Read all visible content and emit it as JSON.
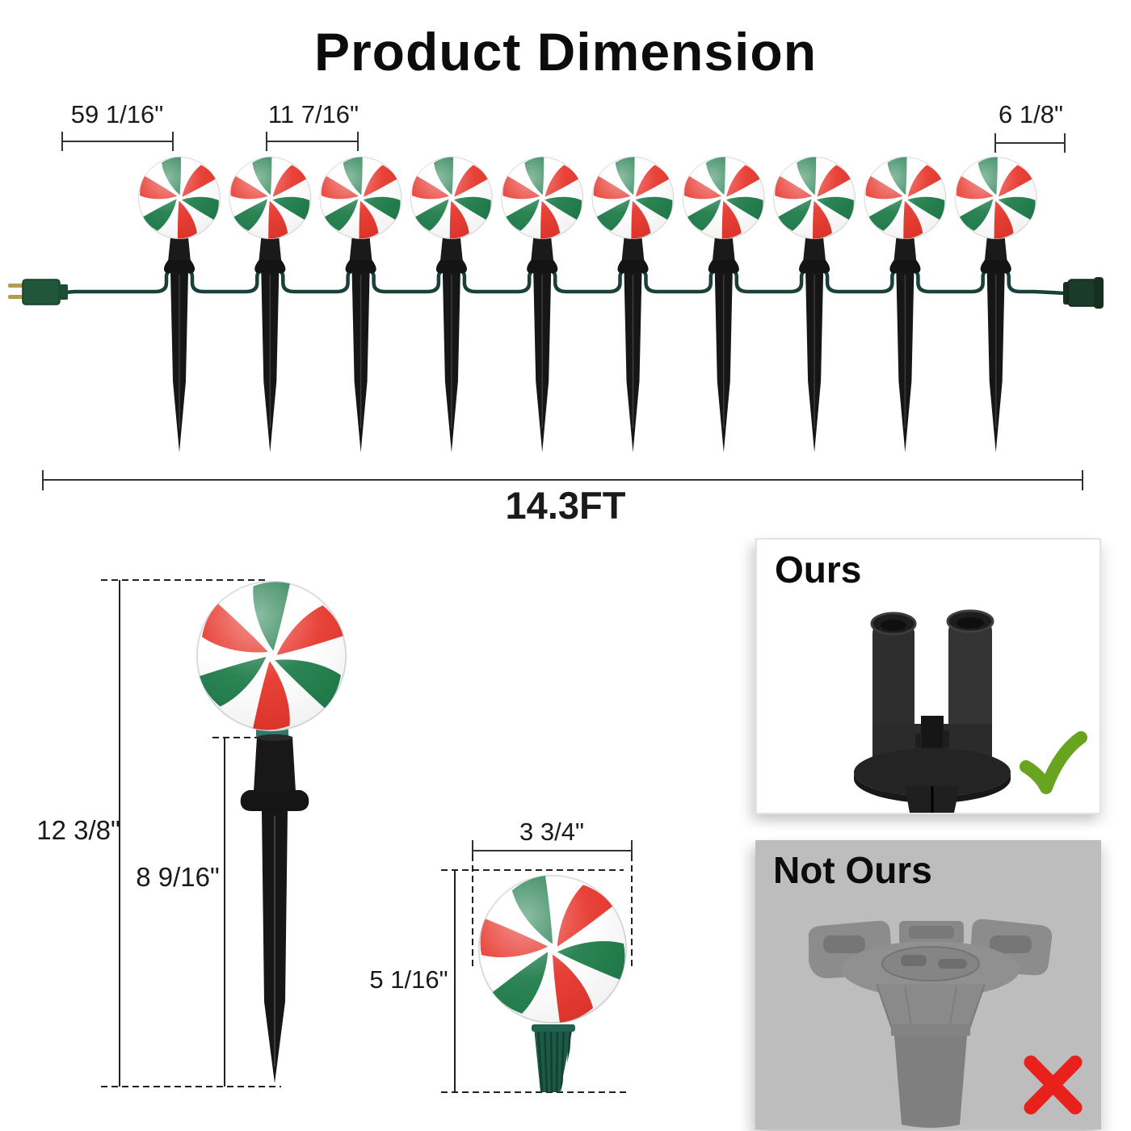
{
  "title": "Product Dimension",
  "top_row": {
    "light_count": 10,
    "lead_length_label": "59 1/16\"",
    "spacing_label": "11 7/16\"",
    "tail_length_label": "6 1/8\"",
    "total_length_label": "14.3FT"
  },
  "stake_detail": {
    "overall_height_label": "12 3/8\"",
    "spike_height_label": "8 9/16\""
  },
  "candy_detail": {
    "width_label": "3 3/4\"",
    "height_label": "5 1/16\""
  },
  "comparison": {
    "ours_label": "Ours",
    "not_ours_label": "Not Ours"
  },
  "colors": {
    "candy_red": "#e63228",
    "candy_green": "#1a7a47",
    "wire_green": "#17413a",
    "plug_green": "#20573a",
    "socket_teal": "#2e7a6a",
    "bulb_base_green": "#1c5a45",
    "stake_black": "#1a1a1a",
    "check_green": "#68a420",
    "cross_red": "#e8211c",
    "not_ours_bg": "#bdbdbd"
  }
}
